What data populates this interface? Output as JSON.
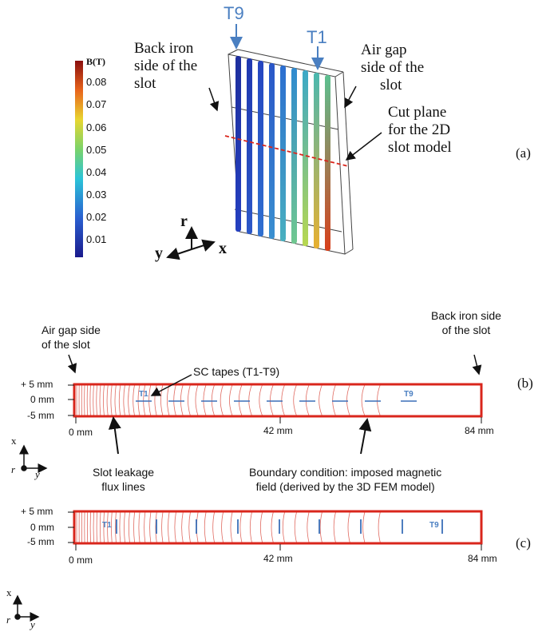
{
  "panel_a": {
    "colorbar": {
      "title": "B(T)",
      "ticks": [
        "0.08",
        "0.07",
        "0.06",
        "0.05",
        "0.04",
        "0.03",
        "0.02",
        "0.01"
      ]
    },
    "tape_first": "T9",
    "tape_last": "T1",
    "back_iron_label": [
      "Back iron",
      "side of the",
      "slot"
    ],
    "air_gap_label": [
      "Air gap",
      "side of the",
      "slot"
    ],
    "cut_plane_label": [
      "Cut plane",
      "for the 2D",
      "slot model"
    ],
    "axes": {
      "r": "r",
      "y": "y",
      "x": "x"
    },
    "label": "(a)"
  },
  "panel_b": {
    "air_gap_label": [
      "Air gap side",
      "of the slot"
    ],
    "back_iron_label": [
      "Back iron side",
      "of the slot"
    ],
    "tapes_label": "SC tapes (T1-T9)",
    "y_ticks": [
      "+ 5 mm",
      "0 mm",
      "-5 mm"
    ],
    "x_ticks": [
      "0 mm",
      "42 mm",
      "84 mm"
    ],
    "tape_first": "T1",
    "tape_last": "T9",
    "flux_label": [
      "Slot leakage",
      "flux lines"
    ],
    "boundary_label": [
      "Boundary condition: imposed magnetic",
      "field (derived by the 3D FEM model)"
    ],
    "axes": {
      "x": "x",
      "r": "r",
      "y": "y"
    },
    "label": "(b)"
  },
  "panel_c": {
    "y_ticks": [
      "+ 5 mm",
      "0 mm",
      "-5 mm"
    ],
    "x_ticks": [
      "0 mm",
      "42 mm",
      "84 mm"
    ],
    "tape_first": "T1",
    "tape_last": "T9",
    "axes": {
      "x": "x",
      "r": "r",
      "y": "y"
    },
    "label": "(c)"
  },
  "colors": {
    "box": "#d9261c",
    "flux": "#e06a60",
    "tape": "#3a6fb8",
    "annot": "#4a7fc1"
  }
}
